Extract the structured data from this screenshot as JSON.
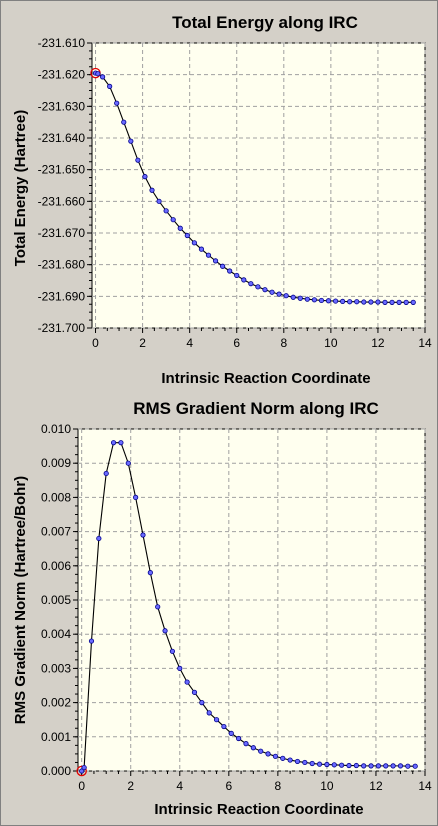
{
  "chart_data": [
    {
      "type": "line",
      "title": "Total Energy along IRC",
      "xlabel": "Intrinsic Reaction Coordinate",
      "ylabel": "Total Energy (Hartree)",
      "xlim": [
        -0.15,
        14
      ],
      "ylim": [
        -231.7,
        -231.61
      ],
      "xticks": [
        0,
        2,
        4,
        6,
        8,
        10,
        12,
        14
      ],
      "yticks": [
        -231.61,
        -231.62,
        -231.63,
        -231.64,
        -231.65,
        -231.66,
        -231.67,
        -231.68,
        -231.69,
        -231.7
      ],
      "ytick_labels": [
        "-231.610",
        "-231.620",
        "-231.630",
        "-231.640",
        "-231.650",
        "-231.660",
        "-231.670",
        "-231.680",
        "-231.690",
        "-231.700"
      ],
      "grid": true,
      "highlight_index": 0,
      "x": [
        0,
        0.1,
        0.3,
        0.6,
        0.9,
        1.2,
        1.5,
        1.8,
        2.1,
        2.4,
        2.7,
        3.0,
        3.3,
        3.6,
        3.9,
        4.2,
        4.5,
        4.8,
        5.1,
        5.4,
        5.7,
        6.0,
        6.3,
        6.6,
        6.9,
        7.2,
        7.5,
        7.8,
        8.1,
        8.4,
        8.7,
        9.0,
        9.3,
        9.6,
        9.9,
        10.2,
        10.5,
        10.8,
        11.1,
        11.4,
        11.7,
        12.0,
        12.3,
        12.6,
        12.9,
        13.2,
        13.5
      ],
      "y": [
        -231.6195,
        -231.6197,
        -231.6207,
        -231.6237,
        -231.629,
        -231.635,
        -231.641,
        -231.647,
        -231.6522,
        -231.6565,
        -231.66,
        -231.663,
        -231.6658,
        -231.6685,
        -231.6708,
        -231.6731,
        -231.6751,
        -231.677,
        -231.6788,
        -231.6805,
        -231.682,
        -231.6834,
        -231.6848,
        -231.686,
        -231.687,
        -231.6879,
        -231.6887,
        -231.6893,
        -231.6898,
        -231.6903,
        -231.6906,
        -231.6909,
        -231.6911,
        -231.6913,
        -231.6914,
        -231.6915,
        -231.6916,
        -231.6917,
        -231.6917,
        -231.6918,
        -231.6918,
        -231.6918,
        -231.6919,
        -231.6919,
        -231.6919,
        -231.6919,
        -231.6919
      ]
    },
    {
      "type": "line",
      "title": "RMS Gradient Norm along IRC",
      "xlabel": "Intrinsic Reaction Coordinate",
      "ylabel": "RMS Gradient Norm (Hartree/Bohr)",
      "xlim": [
        -0.15,
        14
      ],
      "ylim": [
        0,
        0.01
      ],
      "xticks": [
        0,
        2,
        4,
        6,
        8,
        10,
        12,
        14
      ],
      "yticks": [
        0.0,
        0.001,
        0.002,
        0.003,
        0.004,
        0.005,
        0.006,
        0.007,
        0.008,
        0.009,
        0.01
      ],
      "ytick_labels": [
        "0.000",
        "0.001",
        "0.002",
        "0.003",
        "0.004",
        "0.005",
        "0.006",
        "0.007",
        "0.008",
        "0.009",
        "0.010"
      ],
      "grid": true,
      "highlight_index": 0,
      "x": [
        0,
        0.1,
        0.4,
        0.7,
        1.0,
        1.3,
        1.6,
        1.9,
        2.2,
        2.5,
        2.8,
        3.1,
        3.4,
        3.7,
        4.0,
        4.3,
        4.6,
        4.9,
        5.2,
        5.5,
        5.8,
        6.1,
        6.4,
        6.7,
        7.0,
        7.3,
        7.6,
        7.9,
        8.2,
        8.5,
        8.8,
        9.1,
        9.4,
        9.7,
        10.0,
        10.3,
        10.6,
        10.9,
        11.2,
        11.5,
        11.8,
        12.1,
        12.4,
        12.7,
        13.0,
        13.3,
        13.6
      ],
      "y": [
        0.0,
        0.0001,
        0.0038,
        0.0068,
        0.0087,
        0.0096,
        0.0096,
        0.009,
        0.008,
        0.0069,
        0.0058,
        0.0048,
        0.0041,
        0.0035,
        0.003,
        0.0026,
        0.0023,
        0.002,
        0.0017,
        0.0015,
        0.0013,
        0.0011,
        0.00095,
        0.0008,
        0.00068,
        0.00058,
        0.0005,
        0.00043,
        0.00037,
        0.00032,
        0.00028,
        0.00025,
        0.00022,
        0.0002,
        0.00019,
        0.00018,
        0.00017,
        0.00016,
        0.00016,
        0.00015,
        0.00015,
        0.00015,
        0.00015,
        0.00015,
        0.00015,
        0.00014,
        0.00014
      ]
    }
  ]
}
